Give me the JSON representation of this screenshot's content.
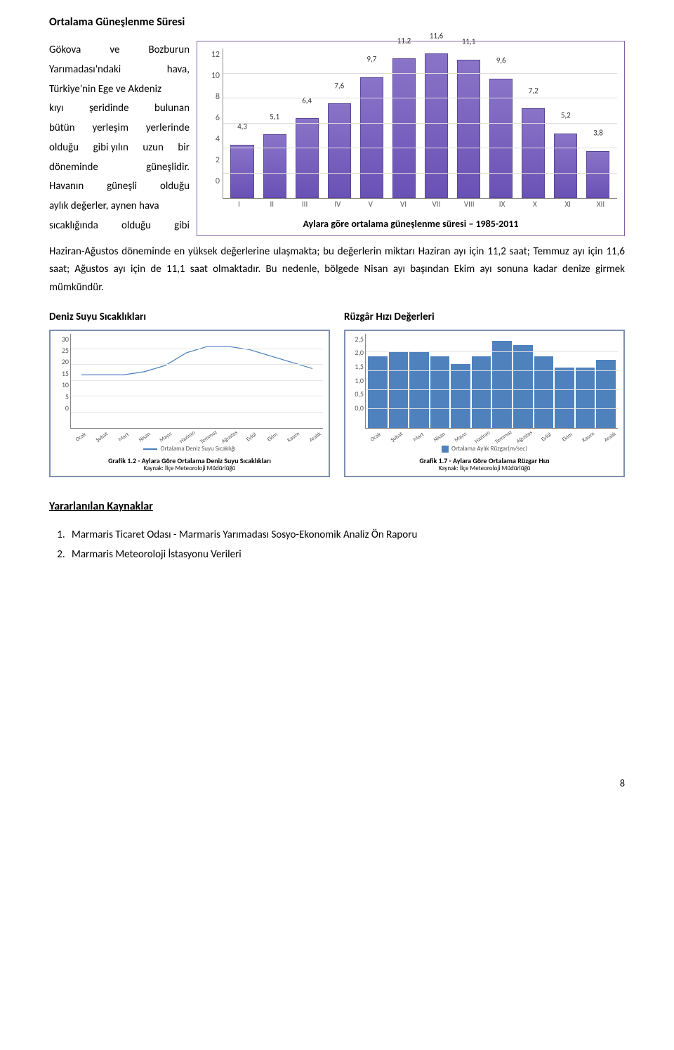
{
  "title1": "Ortalama Güneşlenme Süresi",
  "leftTextLines": [
    [
      "Gökova",
      "ve",
      "Bozburun"
    ],
    [
      "Yarımadası'ndaki",
      "hava,"
    ],
    [
      "Türkiye'nin Ege ve Akdeniz"
    ],
    [
      "kıyı",
      "şeridinde",
      "bulunan"
    ],
    [
      "bütün",
      "yerleşim",
      "yerlerinde"
    ],
    [
      "olduğu",
      "gibi yılın",
      "uzun",
      "bir"
    ],
    [
      "döneminde",
      "güneşlidir."
    ],
    [
      "Havanın",
      "güneşli",
      "olduğu"
    ],
    [
      "aylık değerler, aynen hava"
    ],
    [
      "sıcaklığında",
      "olduğu",
      "gibi"
    ]
  ],
  "barChart": {
    "ymax": 12,
    "ystep": 2,
    "yticks": [
      "12",
      "10",
      "8",
      "6",
      "4",
      "2",
      "0"
    ],
    "values": [
      4.3,
      5.1,
      6.4,
      7.6,
      9.7,
      11.2,
      11.6,
      11.1,
      9.6,
      7.2,
      5.2,
      3.8
    ],
    "labels": [
      "4,3",
      "5,1",
      "6,4",
      "7,6",
      "9,7",
      "11,2",
      "11,6",
      "11,1",
      "9,6",
      "7,2",
      "5,2",
      "3,8"
    ],
    "categories": [
      "I",
      "II",
      "III",
      "IV",
      "V",
      "VI",
      "VII",
      "VIII",
      "IX",
      "X",
      "XI",
      "XII"
    ],
    "caption": "Aylara göre ortalama güneşlenme süresi – 1985-2011",
    "bar_color": "#6a51b5",
    "border_color": "#8064a2"
  },
  "bodyPara": "Haziran-Ağustos döneminde en yüksek değerlerine ulaşmakta; bu değerlerin miktarı Haziran ayı için 11,2 saat; Temmuz ayı için 11,6 saat; Ağustos ayı için de 11,1 saat olmaktadır. Bu nedenle, bölgede Nisan ayı başından Ekim ayı sonuna kadar denize girmek mümkündür.",
  "seaTemp": {
    "title": "Deniz Suyu Sıcaklıkları",
    "yticks": [
      "30",
      "25",
      "20",
      "15",
      "10",
      "5",
      "0"
    ],
    "ymax": 30,
    "values": [
      17,
      17,
      17,
      18,
      20,
      24,
      26,
      26,
      25,
      23,
      21,
      19
    ],
    "months": [
      "Ocak",
      "Şubat",
      "Mart",
      "Nisan",
      "Mayıs",
      "Haziran",
      "Temmuz",
      "Ağustos",
      "Eylül",
      "Ekim",
      "Kasım",
      "Aralık"
    ],
    "legend": "Ortalama Deniz Suyu Sıcaklığı",
    "caption1": "Grafik 1.2 - Aylara Göre Ortalama Deniz Suyu Sıcaklıkları",
    "caption2": "Kaynak: İlçe Meteoroloji Müdürlüğü",
    "line_color": "#4a7ebb"
  },
  "wind": {
    "title": "Rüzgâr Hızı Değerleri",
    "yticks": [
      "2,5",
      "2,0",
      "1,5",
      "1,0",
      "0,5",
      "0,0"
    ],
    "ymax": 2.5,
    "values": [
      1.9,
      2.0,
      2.0,
      1.9,
      1.7,
      1.9,
      2.3,
      2.2,
      1.9,
      1.6,
      1.6,
      1.8
    ],
    "months": [
      "Ocak",
      "Şubat",
      "Mart",
      "Nisan",
      "Mayıs",
      "Haziran",
      "Temmuz",
      "Ağustos",
      "Eylül",
      "Ekim",
      "Kasım",
      "Aralık"
    ],
    "legend": "Ortalama Aylık Rüzgar(m/sec)",
    "caption1": "Grafik 1.7 - Aylara Göre Ortalama Rüzgar Hızı",
    "caption2": "Kaynak: İlçe Meteoroloji Müdürlüğü",
    "bar_color": "#4f81bd"
  },
  "refsTitle": "Yararlanılan Kaynaklar",
  "refs": [
    "Marmaris Ticaret Odası - Marmaris Yarımadası Sosyo-Ekonomik Analiz Ön Raporu",
    "Marmaris Meteoroloji İstasyonu Verileri"
  ],
  "pageNum": "8"
}
